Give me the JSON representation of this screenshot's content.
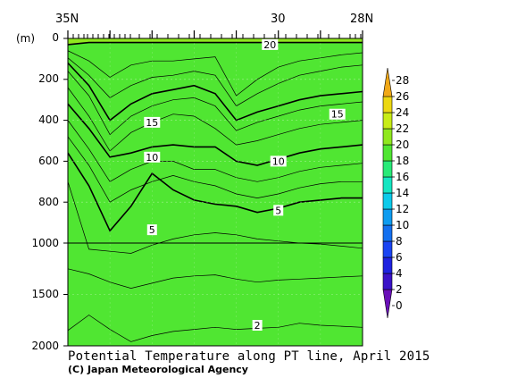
{
  "chart_data": {
    "type": "heatmap",
    "title": "Potential Temperature along PT line, April 2015",
    "credit": "(C) Japan Meteorological Agency",
    "y_unit_label": "(m)",
    "x_top_labels": [
      "35N",
      "30",
      "28N"
    ],
    "x_lat_range": [
      35,
      28
    ],
    "y_ticks_upper": [
      "0",
      "200",
      "400",
      "600",
      "800",
      "1000"
    ],
    "y_ticks_lower": [
      "1500",
      "2000"
    ],
    "y_break_depth": 1000,
    "y_max_depth": 2000,
    "colorbar": {
      "levels": [
        0,
        2,
        4,
        6,
        8,
        10,
        12,
        14,
        16,
        18,
        20,
        22,
        24,
        26,
        28
      ],
      "labels": [
        "0",
        "2",
        "4",
        "6",
        "8",
        "10",
        "12",
        "14",
        "16",
        "18",
        "20",
        "22",
        "24",
        "26",
        "28"
      ],
      "colors": [
        "#6a0fb8",
        "#3a12c8",
        "#1e22e0",
        "#1a44f2",
        "#1470ef",
        "#0e9cf0",
        "#0ccaea",
        "#14e6c2",
        "#28ea78",
        "#50e632",
        "#90e81e",
        "#c8ec16",
        "#ecd812",
        "#f0a818"
      ]
    },
    "contour_labels": [
      {
        "text": "20",
        "lat": 30.2,
        "depth": 30
      },
      {
        "text": "15",
        "lat": 33.0,
        "depth": 410
      },
      {
        "text": "15",
        "lat": 28.6,
        "depth": 370
      },
      {
        "text": "10",
        "lat": 33.0,
        "depth": 580
      },
      {
        "text": "10",
        "lat": 30.0,
        "depth": 600
      },
      {
        "text": "5",
        "lat": 33.0,
        "depth": 935
      },
      {
        "text": "5",
        "lat": 30.0,
        "depth": 840
      },
      {
        "text": "2",
        "lat": 30.5,
        "depth": 1800
      }
    ],
    "isotherms": [
      {
        "level": 20,
        "depth": [
          30,
          20,
          20,
          20,
          20,
          20,
          20,
          20,
          20,
          20,
          20,
          20,
          20,
          20,
          20
        ]
      },
      {
        "level": 18,
        "depth": [
          60,
          110,
          190,
          130,
          110,
          110,
          100,
          90,
          280,
          200,
          140,
          110,
          95,
          80,
          70
        ]
      },
      {
        "level": 16,
        "depth": [
          95,
          180,
          290,
          230,
          190,
          180,
          160,
          180,
          330,
          270,
          220,
          180,
          160,
          140,
          130
        ]
      },
      {
        "level": 15,
        "depth": [
          120,
          230,
          400,
          320,
          270,
          250,
          230,
          270,
          400,
          360,
          330,
          300,
          280,
          270,
          260
        ]
      },
      {
        "level": 14,
        "depth": [
          160,
          280,
          470,
          380,
          330,
          300,
          290,
          330,
          450,
          410,
          380,
          350,
          330,
          320,
          310
        ]
      },
      {
        "level": 12,
        "depth": [
          240,
          380,
          550,
          460,
          410,
          370,
          380,
          440,
          520,
          500,
          470,
          440,
          420,
          410,
          400
        ]
      },
      {
        "level": 10,
        "depth": [
          320,
          440,
          580,
          560,
          530,
          520,
          530,
          530,
          600,
          620,
          590,
          560,
          540,
          530,
          520
        ]
      },
      {
        "level": 8,
        "depth": [
          400,
          540,
          700,
          640,
          600,
          600,
          640,
          640,
          680,
          700,
          680,
          650,
          630,
          620,
          610
        ]
      },
      {
        "level": 6,
        "depth": [
          480,
          620,
          800,
          740,
          700,
          670,
          700,
          720,
          760,
          780,
          760,
          730,
          710,
          700,
          700
        ]
      },
      {
        "level": 5,
        "depth": [
          560,
          720,
          940,
          820,
          660,
          740,
          790,
          810,
          820,
          850,
          830,
          800,
          790,
          780,
          780
        ]
      },
      {
        "level": 4,
        "depth": [
          700,
          1060,
          1080,
          1100,
          1020,
          980,
          960,
          950,
          960,
          980,
          990,
          1000,
          1010,
          1030,
          1050
        ]
      },
      {
        "level": 3,
        "depth": [
          1250,
          1300,
          1380,
          1440,
          1390,
          1340,
          1320,
          1310,
          1350,
          1380,
          1360,
          1350,
          1340,
          1330,
          1320
        ]
      },
      {
        "level": 2,
        "depth": [
          1850,
          1700,
          1840,
          1960,
          1900,
          1860,
          1840,
          1820,
          1840,
          1830,
          1820,
          1780,
          1800,
          1810,
          1820
        ]
      }
    ],
    "grid": true
  }
}
